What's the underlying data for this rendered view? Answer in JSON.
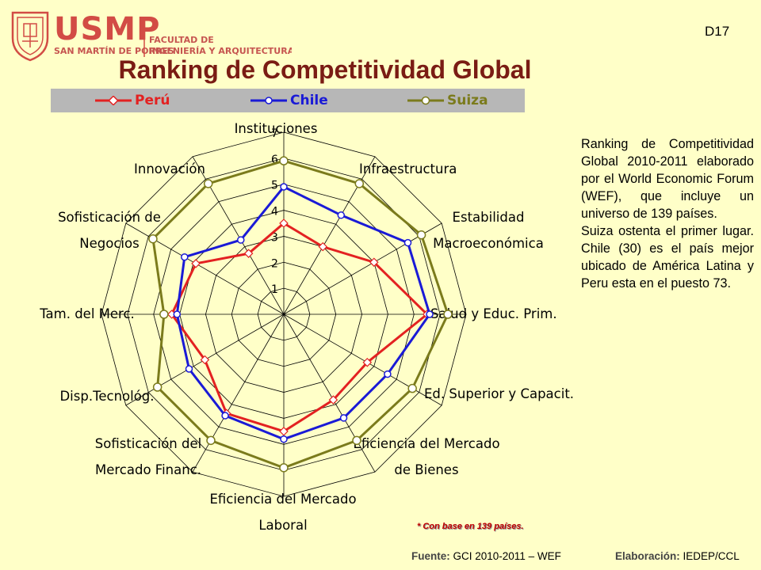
{
  "header": {
    "logo_name": "USMP",
    "logo_sub": "SAN MARTÍN DE PORRES",
    "faculty_line1": "FACULTAD DE",
    "faculty_line2": "INGENIERÍA Y ARQUITECTURA",
    "slide_code": "D17"
  },
  "chart_data": {
    "type": "radar",
    "title": "Ranking de Competitividad Global",
    "axes": [
      [
        "Instituciones"
      ],
      [
        "Infraestructura"
      ],
      [
        "Estabilidad",
        "Macroeconómica"
      ],
      [
        "Salud y Educ. Prim."
      ],
      [
        "Ed. Superior y Capacit."
      ],
      [
        "Eficiencia del Mercado",
        "de Bienes"
      ],
      [
        "Eficiencia del Mercado",
        "Laboral"
      ],
      [
        "Sofisticación del",
        "Mercado Financ."
      ],
      [
        "Disp.Tecnológ."
      ],
      [
        "Tam. del Merc."
      ],
      [
        "Sofisticación de",
        "Negocios"
      ],
      [
        "Innovación"
      ]
    ],
    "scale": {
      "min": 0,
      "max": 7,
      "tick_labels": [
        "1",
        "2",
        "3",
        "4",
        "5",
        "6",
        "7"
      ]
    },
    "legend_position": "top",
    "series": [
      {
        "name": "Perú",
        "color": "#e32121",
        "values": [
          3.5,
          3.0,
          4.0,
          5.5,
          3.7,
          3.8,
          4.5,
          4.4,
          3.5,
          4.3,
          3.9,
          2.7
        ]
      },
      {
        "name": "Chile",
        "color": "#1a1ad6",
        "values": [
          4.9,
          4.4,
          5.5,
          5.6,
          4.6,
          4.6,
          4.8,
          4.5,
          4.2,
          4.1,
          4.4,
          3.3
        ]
      },
      {
        "name": "Suiza",
        "color": "#7b7b1c",
        "values": [
          5.9,
          5.8,
          6.1,
          6.3,
          5.7,
          5.6,
          5.9,
          5.6,
          5.6,
          4.6,
          5.8,
          5.8
        ]
      }
    ]
  },
  "side_text": {
    "p1": "Ranking de Competitividad Global 2010-2011 elaborado por el World Economic Forum (WEF), que incluye un universo de 139 países.",
    "p2": "Suiza ostenta el primer lugar. Chile (30) es el país mejor ubicado de América Latina y Peru esta en el puesto 73."
  },
  "footer": {
    "footnote": "* Con base en 139 países.",
    "source_label": "Fuente:",
    "source_value": "GCI 2010-2011 – WEF",
    "credit_label": "Elaboración:",
    "credit_value": "IEDEP/CCL"
  }
}
